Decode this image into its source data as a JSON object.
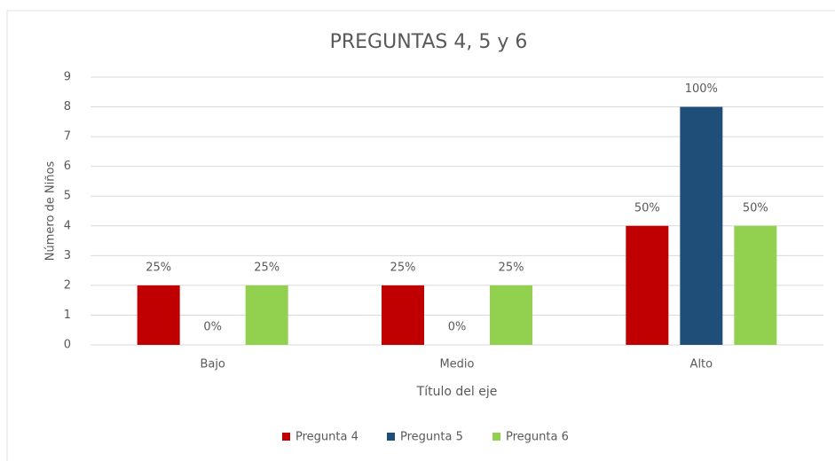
{
  "chart_data": {
    "type": "bar",
    "title": "PREGUNTAS 4, 5 y 6",
    "x_label": "Título del eje",
    "y_label": "Número de Niños",
    "categories": [
      "Bajo",
      "Medio",
      "Alto"
    ],
    "series": [
      {
        "name": "Pregunta 4",
        "color": "#c00000",
        "values": [
          2,
          2,
          4
        ],
        "percentages": [
          "25%",
          "25%",
          "50%"
        ]
      },
      {
        "name": "Pregunta 5",
        "color": "#1f4e79",
        "values": [
          0,
          0,
          8
        ],
        "percentages": [
          "0%",
          "0%",
          "100%"
        ]
      },
      {
        "name": "Pregunta 6",
        "color": "#92d050",
        "values": [
          2,
          2,
          4
        ],
        "percentages": [
          "25%",
          "25%",
          "50%"
        ]
      }
    ],
    "ylim": [
      0,
      9
    ],
    "yticks": [
      0,
      1,
      2,
      3,
      4,
      5,
      6,
      7,
      8,
      9
    ],
    "grid": true,
    "legend": "bottom"
  }
}
